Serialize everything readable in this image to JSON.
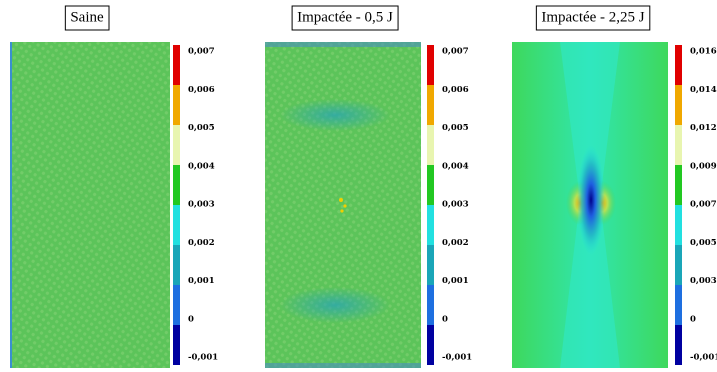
{
  "chart_data": [
    {
      "type": "colormap",
      "title": "Saine",
      "levels": [
        "-0,001",
        "0",
        "0,001",
        "0,002",
        "0,003",
        "0,004",
        "0,005",
        "0,006",
        "0,007"
      ],
      "colors": [
        "#0000a0",
        "#1e6fe0",
        "#1aa6b8",
        "#22e0e0",
        "#22c822",
        "#e8f5b0",
        "#f0a800",
        "#e00000"
      ]
    },
    {
      "type": "colormap",
      "title": "Impactée - 0,5 J",
      "levels": [
        "-0,001",
        "0",
        "0,001",
        "0,002",
        "0,003",
        "0,004",
        "0,005",
        "0,006",
        "0,007"
      ],
      "colors": [
        "#0000a0",
        "#1e6fe0",
        "#1aa6b8",
        "#22e0e0",
        "#22c822",
        "#e8f5b0",
        "#f0a800",
        "#e00000"
      ]
    },
    {
      "type": "colormap",
      "title": "Impactée - 2,25 J",
      "levels": [
        "-0,001",
        "0",
        "0,003",
        "0,005",
        "0,007",
        "0,009",
        "0,012",
        "0,014",
        "0,016"
      ],
      "colors": [
        "#0000a0",
        "#1e6fe0",
        "#1aa6b8",
        "#22e0e0",
        "#22c822",
        "#e8f5b0",
        "#f0a800",
        "#e00000"
      ]
    }
  ]
}
